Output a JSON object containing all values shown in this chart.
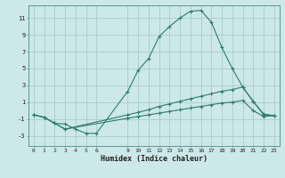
{
  "title": "",
  "xlabel": "Humidex (Indice chaleur)",
  "ylabel": "",
  "background_color": "#cce8e8",
  "grid_color": "#aacccc",
  "line_color": "#2e7d6e",
  "xlim": [
    -0.5,
    23.5
  ],
  "ylim": [
    -4.2,
    12.5
  ],
  "xticks": [
    0,
    1,
    2,
    3,
    4,
    5,
    6,
    9,
    10,
    11,
    12,
    13,
    14,
    15,
    16,
    17,
    18,
    19,
    20,
    21,
    22,
    23
  ],
  "yticks": [
    -3,
    -1,
    1,
    3,
    5,
    7,
    9,
    11
  ],
  "line1_x": [
    0,
    1,
    2,
    3,
    4,
    5,
    6,
    9,
    10,
    11,
    12,
    13,
    14,
    15,
    16,
    17,
    18,
    19,
    20,
    21,
    22,
    23
  ],
  "line1_y": [
    -0.5,
    -0.8,
    -1.5,
    -1.6,
    -2.2,
    -2.7,
    -2.7,
    2.3,
    4.8,
    6.2,
    8.8,
    10.0,
    11.0,
    11.8,
    11.9,
    10.5,
    7.5,
    5.0,
    2.8,
    1.1,
    -0.4,
    -0.6
  ],
  "line2_x": [
    0,
    1,
    2,
    3,
    9,
    10,
    11,
    12,
    13,
    14,
    15,
    16,
    17,
    18,
    19,
    20,
    21,
    22,
    23
  ],
  "line2_y": [
    -0.5,
    -0.8,
    -1.5,
    -2.2,
    -0.5,
    -0.2,
    0.1,
    0.5,
    0.8,
    1.1,
    1.4,
    1.7,
    2.0,
    2.3,
    2.5,
    2.8,
    1.1,
    -0.5,
    -0.6
  ],
  "line3_x": [
    0,
    1,
    2,
    3,
    9,
    10,
    11,
    12,
    13,
    14,
    15,
    16,
    17,
    18,
    19,
    20,
    21,
    22,
    23
  ],
  "line3_y": [
    -0.5,
    -0.8,
    -1.5,
    -2.2,
    -0.9,
    -0.7,
    -0.5,
    -0.3,
    -0.1,
    0.1,
    0.3,
    0.5,
    0.7,
    0.9,
    1.0,
    1.2,
    0.0,
    -0.7,
    -0.6
  ]
}
